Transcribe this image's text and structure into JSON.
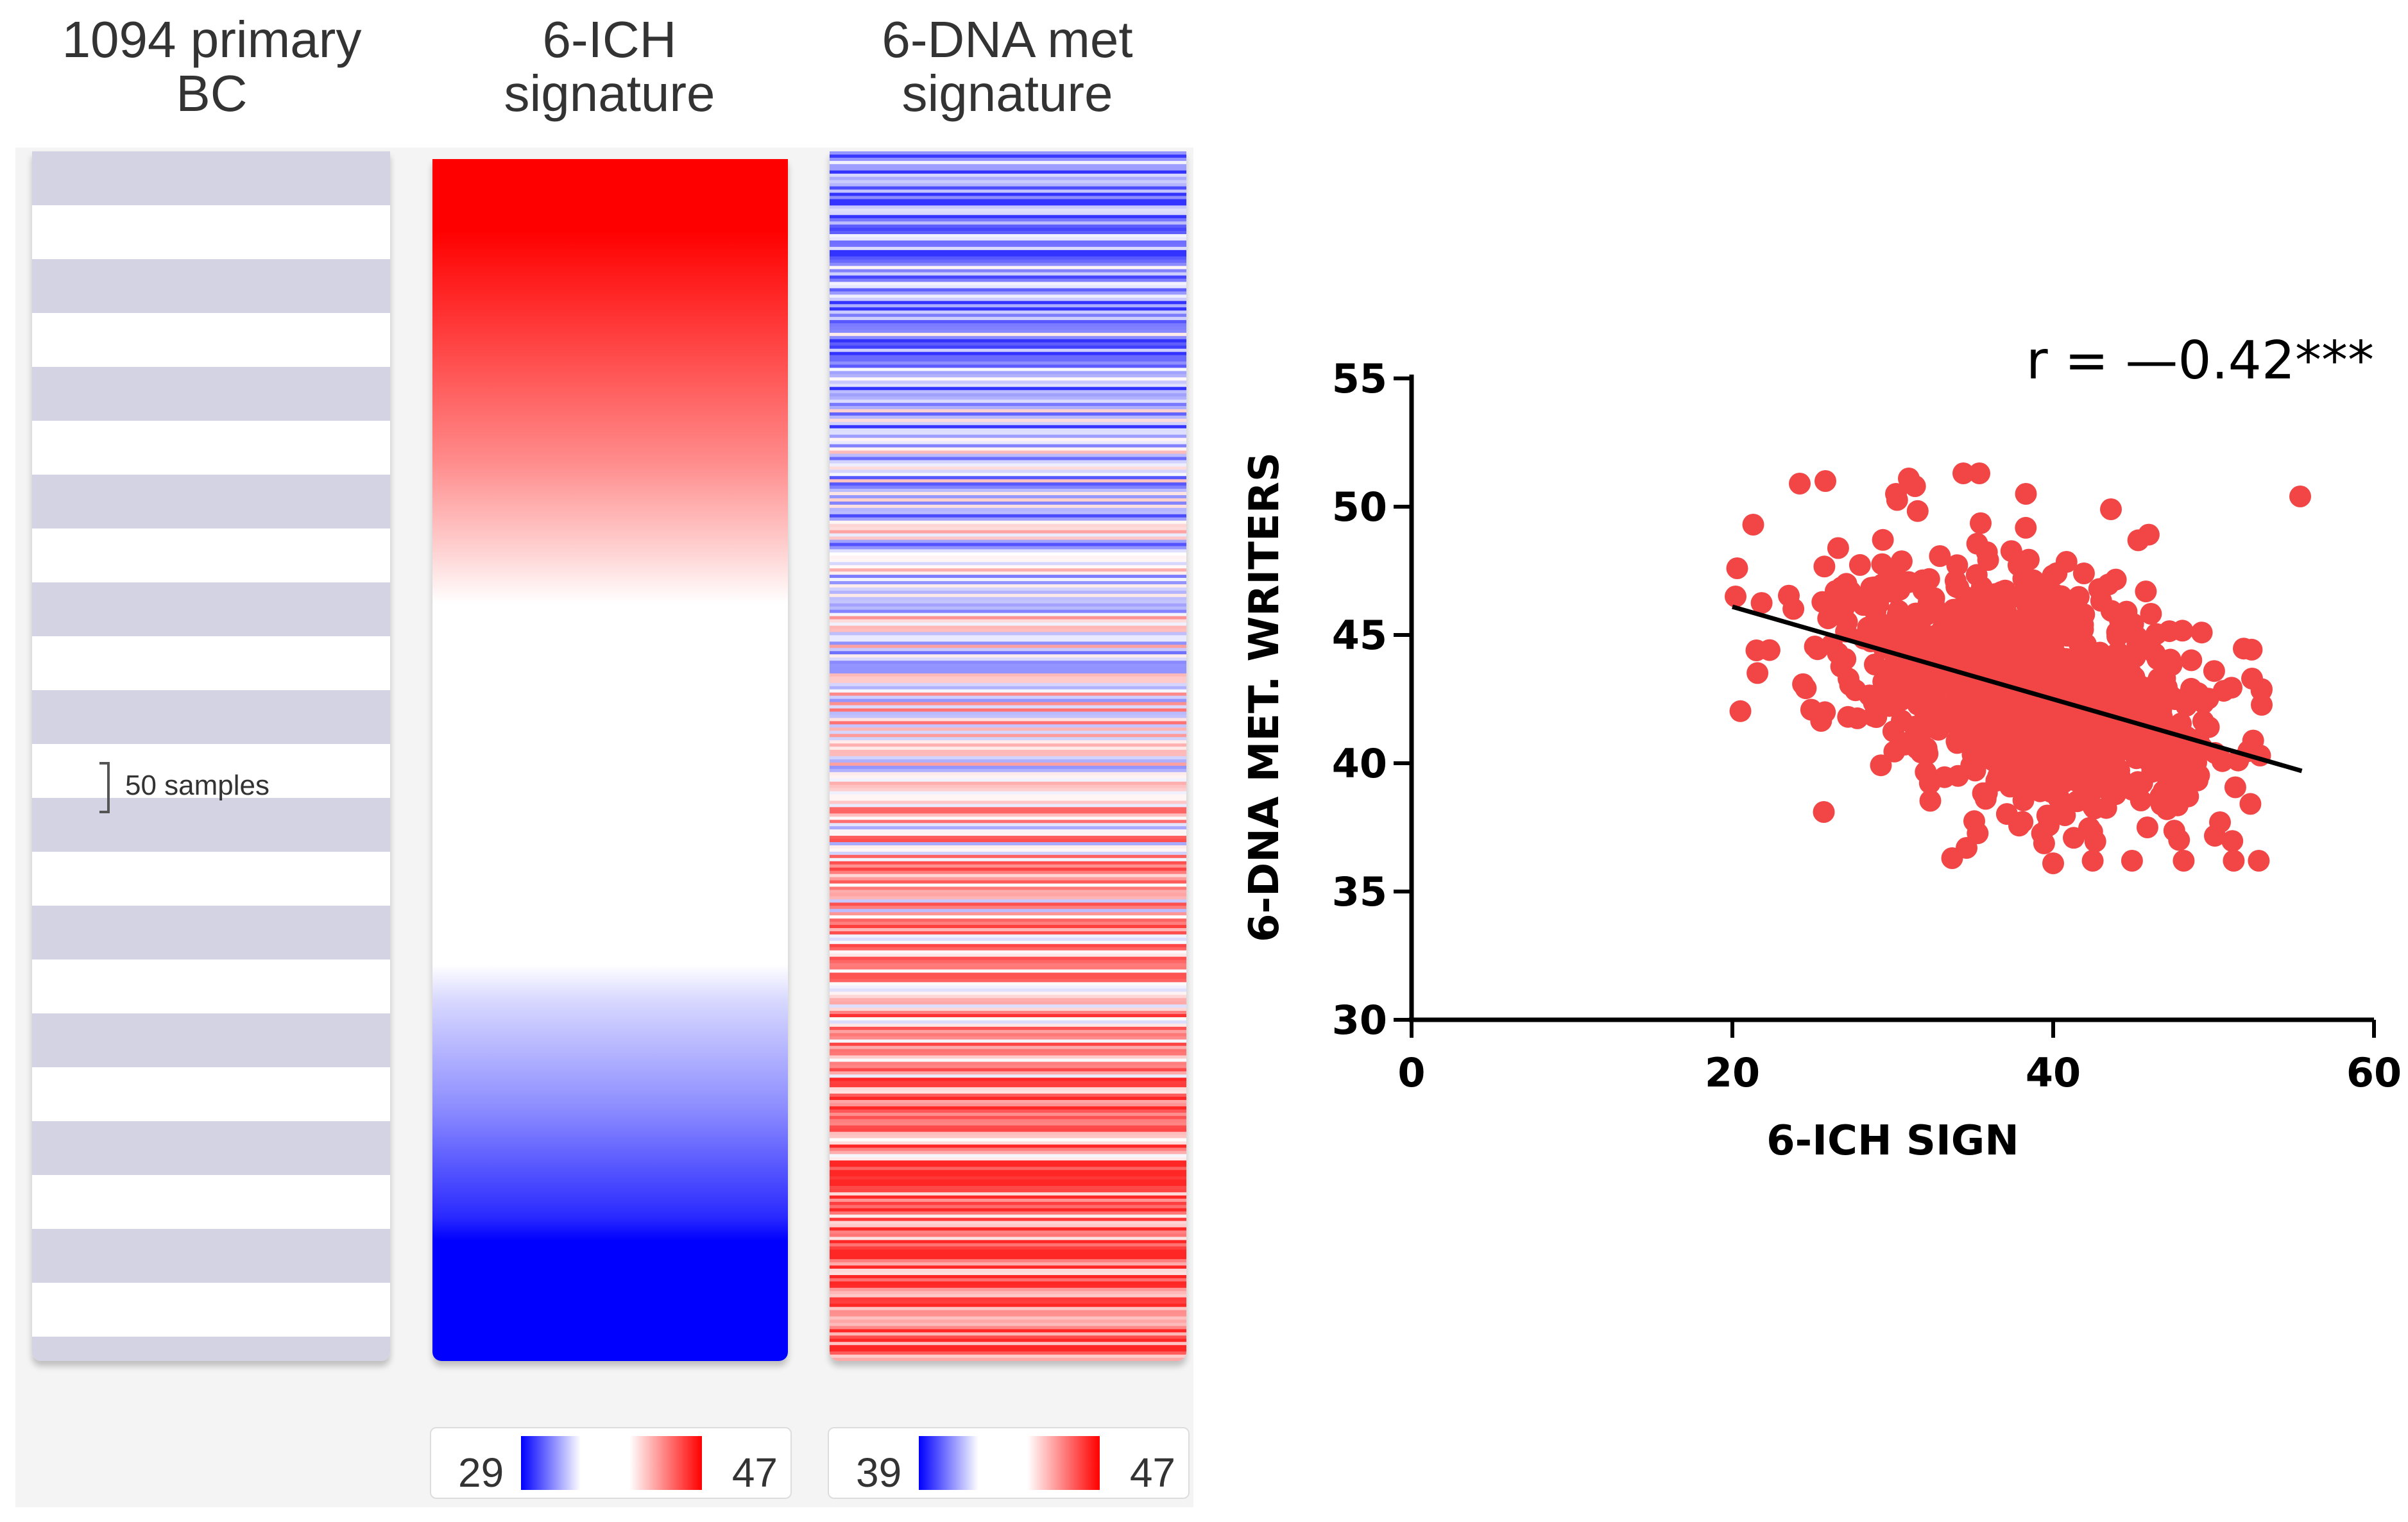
{
  "heatmap": {
    "columns": [
      {
        "title_line1": "1094 primary",
        "title_line2": "BC"
      },
      {
        "title_line1": "6-ICH",
        "title_line2": "signature"
      },
      {
        "title_line1": "6-DNA met",
        "title_line2": "signature"
      }
    ],
    "scale_label": "50 samples",
    "ich_legend": {
      "min": "29",
      "max": "47"
    },
    "dna_legend": {
      "min": "39",
      "max": "47"
    },
    "colors": {
      "high": "#ff0000",
      "low": "#0000ff",
      "mid": "#ffffff",
      "band": "#d3d3e3"
    }
  },
  "chart_data": {
    "type": "scatter",
    "title": "",
    "annotation": "r = —0.42***",
    "xlabel": "6-ICH SIGN",
    "ylabel": "6-DNA MET. WRITERS",
    "xlim": [
      0,
      60
    ],
    "ylim": [
      30,
      55
    ],
    "xticks": [
      0,
      20,
      40,
      60
    ],
    "yticks": [
      30,
      35,
      40,
      45,
      50,
      55
    ],
    "n_points": 1094,
    "point_color": "#f24545",
    "fit_line": {
      "x": [
        20,
        55.5
      ],
      "y": [
        46.1,
        39.7
      ],
      "color": "#000000"
    },
    "r": -0.42,
    "labeled_outliers": [
      {
        "x": 20.2,
        "y": 46.5
      },
      {
        "x": 20.3,
        "y": 47.6
      },
      {
        "x": 21.3,
        "y": 49.3
      },
      {
        "x": 24.2,
        "y": 50.9
      },
      {
        "x": 25.8,
        "y": 51.0
      },
      {
        "x": 30.2,
        "y": 50.5
      },
      {
        "x": 31.0,
        "y": 51.1
      },
      {
        "x": 34.4,
        "y": 51.3
      },
      {
        "x": 35.4,
        "y": 51.3
      },
      {
        "x": 38.3,
        "y": 50.5
      },
      {
        "x": 43.6,
        "y": 49.9
      },
      {
        "x": 55.4,
        "y": 50.4
      },
      {
        "x": 52.4,
        "y": 43.3
      },
      {
        "x": 50.4,
        "y": 37.7
      },
      {
        "x": 40.0,
        "y": 36.1
      },
      {
        "x": 33.7,
        "y": 36.3
      },
      {
        "x": 34.6,
        "y": 36.7
      },
      {
        "x": 25.7,
        "y": 38.1
      },
      {
        "x": 21.5,
        "y": 44.4
      },
      {
        "x": 52.9,
        "y": 40.3
      }
    ]
  }
}
